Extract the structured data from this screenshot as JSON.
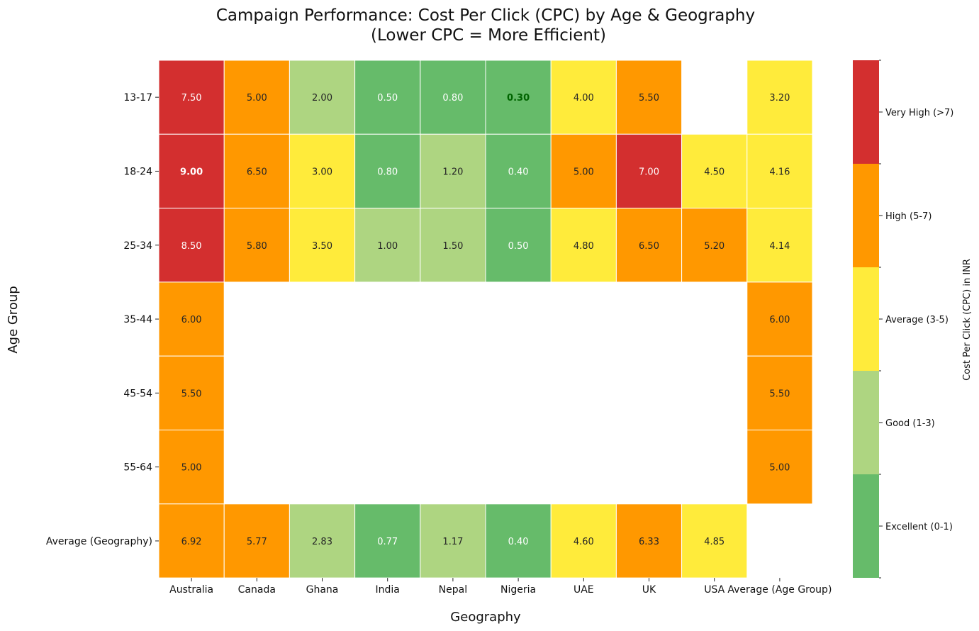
{
  "chart_data": {
    "type": "heatmap",
    "title_lines": [
      "Campaign Performance: Cost Per Click (CPC) by Age & Geography",
      "(Lower CPC = More Efficient)"
    ],
    "xlabel": "Geography",
    "ylabel": "Age Group",
    "x": [
      "Australia",
      "Canada",
      "Ghana",
      "India",
      "Nepal",
      "Nigeria",
      "UAE",
      "UK",
      "USA",
      "Average (Age Group)"
    ],
    "y": [
      "13-17",
      "18-24",
      "25-34",
      "35-44",
      "45-54",
      "55-64",
      "Average (Geography)"
    ],
    "values": [
      [
        7.5,
        5.0,
        2.0,
        0.5,
        0.8,
        0.3,
        4.0,
        5.5,
        null,
        3.2
      ],
      [
        9.0,
        6.5,
        3.0,
        0.8,
        1.2,
        0.4,
        5.0,
        7.0,
        4.5,
        4.16
      ],
      [
        8.5,
        5.8,
        3.5,
        1.0,
        1.5,
        0.5,
        4.8,
        6.5,
        5.2,
        4.14
      ],
      [
        6.0,
        null,
        null,
        null,
        null,
        null,
        null,
        null,
        null,
        6.0
      ],
      [
        5.5,
        null,
        null,
        null,
        null,
        null,
        null,
        null,
        null,
        5.5
      ],
      [
        5.0,
        null,
        null,
        null,
        null,
        null,
        null,
        null,
        null,
        5.0
      ],
      [
        6.92,
        5.77,
        2.83,
        0.77,
        1.17,
        0.4,
        4.6,
        6.33,
        4.85,
        null
      ]
    ],
    "highlights": {
      "max": {
        "row": 1,
        "col": 0,
        "color": "#ffffff"
      },
      "min": {
        "row": 0,
        "col": 5,
        "color": "#006400"
      }
    },
    "colorbar": {
      "label": "Cost Per Click (CPC) in INR",
      "bins": [
        {
          "label": "Excellent (0-1)",
          "min": 0,
          "max": 1,
          "color": "#66bb6a"
        },
        {
          "label": "Good (1-3)",
          "min": 1,
          "max": 3,
          "color": "#aed581"
        },
        {
          "label": "Average (3-5)",
          "min": 3,
          "max": 5,
          "color": "#ffeb3b"
        },
        {
          "label": "High (5-7)",
          "min": 5,
          "max": 7,
          "color": "#ff9800"
        },
        {
          "label": "Very High (>7)",
          "min": 7,
          "max": 10,
          "color": "#d32f2f"
        }
      ]
    }
  }
}
